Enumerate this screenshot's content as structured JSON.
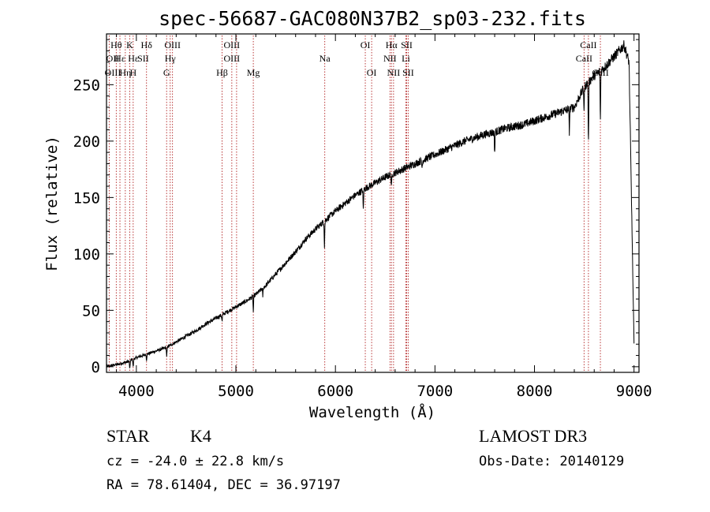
{
  "chart_data": {
    "type": "line",
    "title": "spec-56687-GAC080N37B2_sp03-232.fits",
    "xlabel": "Wavelength (Å)",
    "ylabel": "Flux (relative)",
    "xlim": [
      3700,
      9050
    ],
    "ylim": [
      -5,
      295
    ],
    "xticks": [
      4000,
      5000,
      6000,
      7000,
      8000,
      9000
    ],
    "yticks": [
      0,
      50,
      100,
      150,
      200,
      250
    ],
    "series": [
      {
        "name": "flux",
        "x": [
          3700,
          3800,
          3900,
          4000,
          4100,
          4200,
          4300,
          4400,
          4500,
          4600,
          4700,
          4800,
          4900,
          5000,
          5100,
          5200,
          5300,
          5400,
          5500,
          5600,
          5700,
          5800,
          5900,
          6000,
          6100,
          6200,
          6300,
          6400,
          6500,
          6600,
          6700,
          6800,
          6900,
          7000,
          7100,
          7200,
          7300,
          7400,
          7500,
          7600,
          7700,
          7800,
          7900,
          8000,
          8100,
          8200,
          8300,
          8400,
          8500,
          8600,
          8700,
          8800,
          8900,
          8950,
          9000
        ],
        "y": [
          0,
          2,
          4,
          8,
          11,
          14,
          17,
          22,
          27,
          32,
          38,
          43,
          48,
          53,
          58,
          64,
          72,
          82,
          92,
          102,
          113,
          122,
          130,
          138,
          145,
          152,
          158,
          163,
          168,
          172,
          176,
          180,
          184,
          188,
          192,
          196,
          200,
          203,
          206,
          208,
          211,
          213,
          215,
          218,
          221,
          224,
          227,
          230,
          248,
          258,
          265,
          275,
          285,
          270,
          20
        ],
        "dips": [
          {
            "x": 3934,
            "depth": 8
          },
          {
            "x": 3968,
            "depth": 7
          },
          {
            "x": 4102,
            "depth": 5
          },
          {
            "x": 4305,
            "depth": 9
          },
          {
            "x": 4861,
            "depth": 6
          },
          {
            "x": 5175,
            "depth": 14
          },
          {
            "x": 5270,
            "depth": 7
          },
          {
            "x": 5890,
            "depth": 22
          },
          {
            "x": 6280,
            "depth": 18
          },
          {
            "x": 6563,
            "depth": 12
          },
          {
            "x": 6870,
            "depth": 6
          },
          {
            "x": 7600,
            "depth": 18
          },
          {
            "x": 8350,
            "depth": 20
          },
          {
            "x": 8498,
            "depth": 20
          },
          {
            "x": 8542,
            "depth": 55
          },
          {
            "x": 8662,
            "depth": 45
          }
        ]
      }
    ],
    "spectral_lines": [
      {
        "label": "Hθ",
        "x": 3798,
        "row": 0
      },
      {
        "label": "OII",
        "x": 3727,
        "row": 1
      },
      {
        "label": "OIII",
        "x": 3727,
        "row": 2
      },
      {
        "label": "Hε",
        "x": 3835,
        "row": 1
      },
      {
        "label": "K",
        "x": 3934,
        "row": 0
      },
      {
        "label": "Hε",
        "x": 3970,
        "row": 1
      },
      {
        "label": "Hη",
        "x": 3889,
        "row": 2
      },
      {
        "label": "H",
        "x": 3968,
        "row": 2
      },
      {
        "label": "Hδ",
        "x": 4102,
        "row": 0
      },
      {
        "label": "SII",
        "x": 4068,
        "row": 1
      },
      {
        "label": "OIII",
        "x": 4363,
        "row": 0
      },
      {
        "label": "Hγ",
        "x": 4340,
        "row": 1
      },
      {
        "label": "G",
        "x": 4304,
        "row": 2
      },
      {
        "label": "OIII",
        "x": 4959,
        "row": 0
      },
      {
        "label": "OIII",
        "x": 4959,
        "row": 1
      },
      {
        "label": "Hβ",
        "x": 4861,
        "row": 2
      },
      {
        "label": "Mg",
        "x": 5175,
        "row": 2
      },
      {
        "label": "Na",
        "x": 5893,
        "row": 1
      },
      {
        "label": "OI",
        "x": 6300,
        "row": 0
      },
      {
        "label": "OI",
        "x": 6364,
        "row": 2
      },
      {
        "label": "Hα",
        "x": 6563,
        "row": 0
      },
      {
        "label": "NII",
        "x": 6548,
        "row": 1
      },
      {
        "label": "NII",
        "x": 6584,
        "row": 2
      },
      {
        "label": "SII",
        "x": 6716,
        "row": 0
      },
      {
        "label": "Li",
        "x": 6708,
        "row": 1
      },
      {
        "label": "SII",
        "x": 6731,
        "row": 2
      },
      {
        "label": "CaII",
        "x": 8542,
        "row": 0
      },
      {
        "label": "CaII",
        "x": 8498,
        "row": 1
      },
      {
        "label": "CaII",
        "x": 8662,
        "row": 2
      }
    ],
    "line_positions": [
      3727,
      3798,
      3835,
      3889,
      3934,
      3968,
      4102,
      4304,
      4340,
      4363,
      4861,
      4959,
      5007,
      5175,
      5893,
      6300,
      6364,
      6548,
      6563,
      6584,
      6708,
      6716,
      6731,
      8498,
      8542,
      8662
    ],
    "grid": false,
    "legend": "none"
  },
  "info": {
    "class": "STAR",
    "subclass": "K4",
    "survey": "LAMOST DR3",
    "redshift": "cz = -24.0 ± 22.8 km/s",
    "obs_date": "Obs-Date: 20140129",
    "coords": "RA =  78.61404, DEC =  36.97197"
  },
  "colors": {
    "line_marker": "#b22222",
    "spectrum": "#000000"
  }
}
